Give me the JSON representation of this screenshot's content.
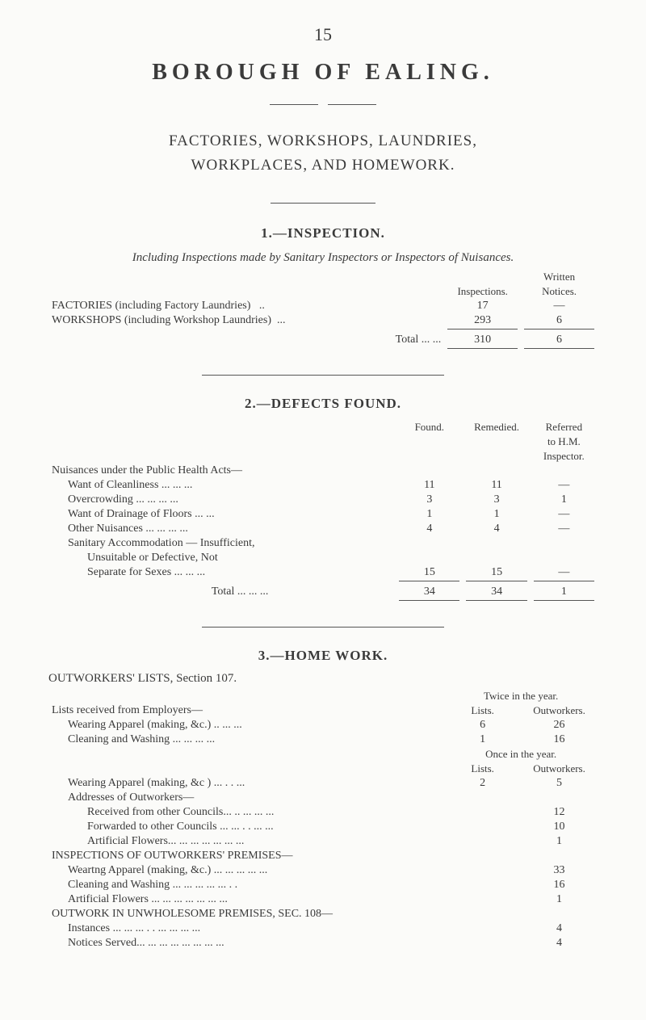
{
  "page_number": "15",
  "main_title": "BOROUGH OF EALING.",
  "subtitle_line1": "FACTORIES, WORKSHOPS, LAUNDRIES,",
  "subtitle_line2": "WORKPLACES, AND HOMEWORK.",
  "section1": {
    "heading": "1.—INSPECTION.",
    "desc": "Including Inspections made by Sanitary Inspectors or Inspectors of Nuisances.",
    "col_inspections": "Inspections.",
    "col_notices_line1": "Written",
    "col_notices_line2": "Notices.",
    "rows": [
      {
        "label": "FACTORIES (including Factory Laundries)",
        "dots": "..",
        "c1": "17",
        "c2": "—"
      },
      {
        "label": "WORKSHOPS (including Workshop Laundries)",
        "dots": "...",
        "c1": "293",
        "c2": "6"
      }
    ],
    "total_label": "Total     ...   ...",
    "total_c1": "310",
    "total_c2": "6"
  },
  "section2": {
    "heading": "2.—DEFECTS FOUND.",
    "col_found": "Found.",
    "col_remedied": "Remedied.",
    "col_referred_l1": "Referred",
    "col_referred_l2": "to H.M.",
    "col_referred_l3": "Inspector.",
    "group_label": "Nuisances under the Public Health Acts—",
    "rows": [
      {
        "label": "Want of Cleanliness      ...   ...   ...",
        "c1": "11",
        "c2": "11",
        "c3": "—"
      },
      {
        "label": "Overcrowding       ...   ...   ...   ...",
        "c1": "3",
        "c2": "3",
        "c3": "1"
      },
      {
        "label": "Want of Drainage of Floors      ...   ...",
        "c1": "1",
        "c2": "1",
        "c3": "—"
      },
      {
        "label": "Other Nuisances    ...   ...   ...   ...",
        "c1": "4",
        "c2": "4",
        "c3": "—"
      },
      {
        "label": "Sanitary  Accommodation — Insufficient,",
        "c1": "",
        "c2": "",
        "c3": ""
      },
      {
        "label": "Unsuitable   or   Defective,   Not",
        "c1": "",
        "c2": "",
        "c3": "",
        "indent": true
      },
      {
        "label": "Separate for Sexes     ...   ...   ...",
        "c1": "15",
        "c2": "15",
        "c3": "—",
        "indent": true
      }
    ],
    "total_label": "Total     ...   ...   ...",
    "total_c1": "34",
    "total_c2": "34",
    "total_c3": "1"
  },
  "section3": {
    "heading": "3.—HOME WORK.",
    "sub_heading": "OUTWORKERS' LISTS, Section 107.",
    "twice_label": "Twice in the year.",
    "col_lists": "Lists.",
    "col_outworkers": "Outworkers.",
    "once_label": "Once in the year.",
    "group1_label": "Lists received from Employers—",
    "group1_rows": [
      {
        "label": "Wearing Apparel (making, &c.)   ..   ...   ...",
        "c1": "6",
        "c2": "26"
      },
      {
        "label": "Cleaning and Washing        ...   ...   ...   ...",
        "c1": "1",
        "c2": "16"
      }
    ],
    "group1b_rows": [
      {
        "label": "Wearing Apparel (making, &c )    ...   . .   ...",
        "c1": "2",
        "c2": "5"
      }
    ],
    "addresses_label": "Addresses of Outworkers—",
    "addresses_rows": [
      {
        "label": "Received from other Councils...    ..   ...   ...   ...",
        "c2": "12"
      },
      {
        "label": "Forwarded to other Councils  ...   ...   . .   ...   ...",
        "c2": "10"
      },
      {
        "label": "Artificial Flowers...    ...   ...   ...   ...   ...   ...",
        "c2": "1"
      }
    ],
    "inspections_label": "INSPECTIONS OF OUTWORKERS' PREMISES—",
    "inspections_rows": [
      {
        "label": "Weartng Apparel (making, &c.)    ...   ...   ...   ...   ...",
        "c2": "33"
      },
      {
        "label": "Cleaning and Washing     ...   ...   ...   ...   ...   . .",
        "c2": "16"
      },
      {
        "label": "Artificial Flowers      ...   ...   ...   ...   ...   ...   ...",
        "c2": "1"
      }
    ],
    "outwork_label": "OUTWORK IN UNWHOLESOME PREMISES, SEC. 108—",
    "outwork_rows": [
      {
        "label": "Instances       ...   ...   ...   . .   ...   ...   ...   ...",
        "c2": "4"
      },
      {
        "label": "Notices Served...   ...   ...   ...   ...   ...   ...   ...",
        "c2": "4"
      }
    ]
  }
}
